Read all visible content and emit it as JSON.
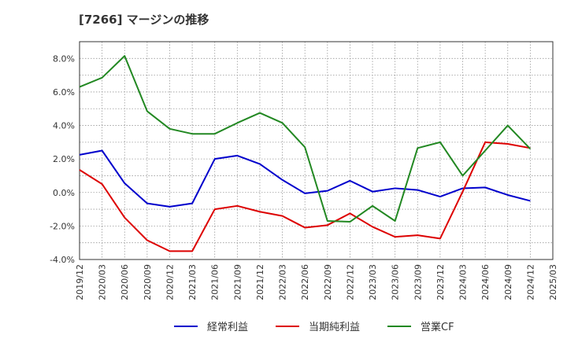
{
  "chart_data": {
    "type": "line",
    "title": "[7266]  マージンの推移",
    "x": [
      "2019/12",
      "2020/03",
      "2020/06",
      "2020/09",
      "2020/12",
      "2021/03",
      "2021/06",
      "2021/09",
      "2021/12",
      "2022/03",
      "2022/06",
      "2022/09",
      "2022/12",
      "2023/03",
      "2023/06",
      "2023/09",
      "2023/12",
      "2024/03",
      "2024/06",
      "2024/09",
      "2024/12",
      "2025/03"
    ],
    "ylim": [
      -4.0,
      9.0
    ],
    "yticks": [
      -4.0,
      -2.0,
      0.0,
      2.0,
      4.0,
      6.0,
      8.0
    ],
    "ytick_labels": [
      "-4.0%",
      "-2.0%",
      "0.0%",
      "2.0%",
      "4.0%",
      "6.0%",
      "8.0%"
    ],
    "grid": true,
    "legend_position": "bottom",
    "series": [
      {
        "name": "経常利益",
        "color": "#0000cc",
        "values": [
          2.25,
          2.5,
          0.55,
          -0.65,
          -0.85,
          -0.65,
          2.0,
          2.2,
          1.7,
          0.75,
          -0.05,
          0.1,
          0.7,
          0.05,
          0.25,
          0.15,
          -0.25,
          0.25,
          0.3,
          -0.15,
          -0.5,
          null
        ]
      },
      {
        "name": "当期純利益",
        "color": "#dd0000",
        "values": [
          1.35,
          0.5,
          -1.5,
          -2.85,
          -3.5,
          -3.5,
          -1.0,
          -0.8,
          -1.15,
          -1.4,
          -2.1,
          -1.95,
          -1.25,
          -2.05,
          -2.65,
          -2.55,
          -2.75,
          0.05,
          3.0,
          2.9,
          2.65,
          null
        ]
      },
      {
        "name": "営業CF",
        "color": "#228822",
        "values": [
          6.3,
          6.85,
          8.15,
          4.85,
          3.8,
          3.5,
          3.5,
          4.15,
          4.75,
          4.15,
          2.7,
          -1.7,
          -1.75,
          -0.8,
          -1.7,
          2.65,
          3.0,
          1.0,
          2.5,
          4.0,
          2.6,
          null
        ]
      }
    ]
  }
}
